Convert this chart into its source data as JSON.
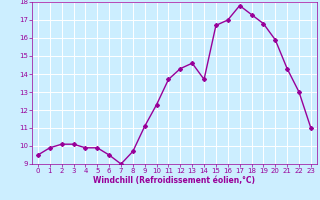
{
  "x": [
    0,
    1,
    2,
    3,
    4,
    5,
    6,
    7,
    8,
    9,
    10,
    11,
    12,
    13,
    14,
    15,
    16,
    17,
    18,
    19,
    20,
    21,
    22,
    23
  ],
  "y": [
    9.5,
    9.9,
    10.1,
    10.1,
    9.9,
    9.9,
    9.5,
    9.0,
    9.7,
    11.1,
    12.3,
    13.7,
    14.3,
    14.6,
    13.7,
    16.7,
    17.0,
    17.8,
    17.3,
    16.8,
    15.9,
    14.3,
    13.0,
    11.0
  ],
  "line_color": "#990099",
  "marker": "D",
  "marker_size": 2.0,
  "line_width": 1.0,
  "xlabel": "Windchill (Refroidissement éolien,°C)",
  "ylim": [
    9,
    18
  ],
  "xlim_min": -0.5,
  "xlim_max": 23.5,
  "yticks": [
    9,
    10,
    11,
    12,
    13,
    14,
    15,
    16,
    17,
    18
  ],
  "xticks": [
    0,
    1,
    2,
    3,
    4,
    5,
    6,
    7,
    8,
    9,
    10,
    11,
    12,
    13,
    14,
    15,
    16,
    17,
    18,
    19,
    20,
    21,
    22,
    23
  ],
  "bg_color": "#cceeff",
  "grid_color": "#ffffff",
  "tick_color": "#990099",
  "label_color": "#990099",
  "xlabel_fontsize": 5.5,
  "tick_fontsize": 5.0
}
